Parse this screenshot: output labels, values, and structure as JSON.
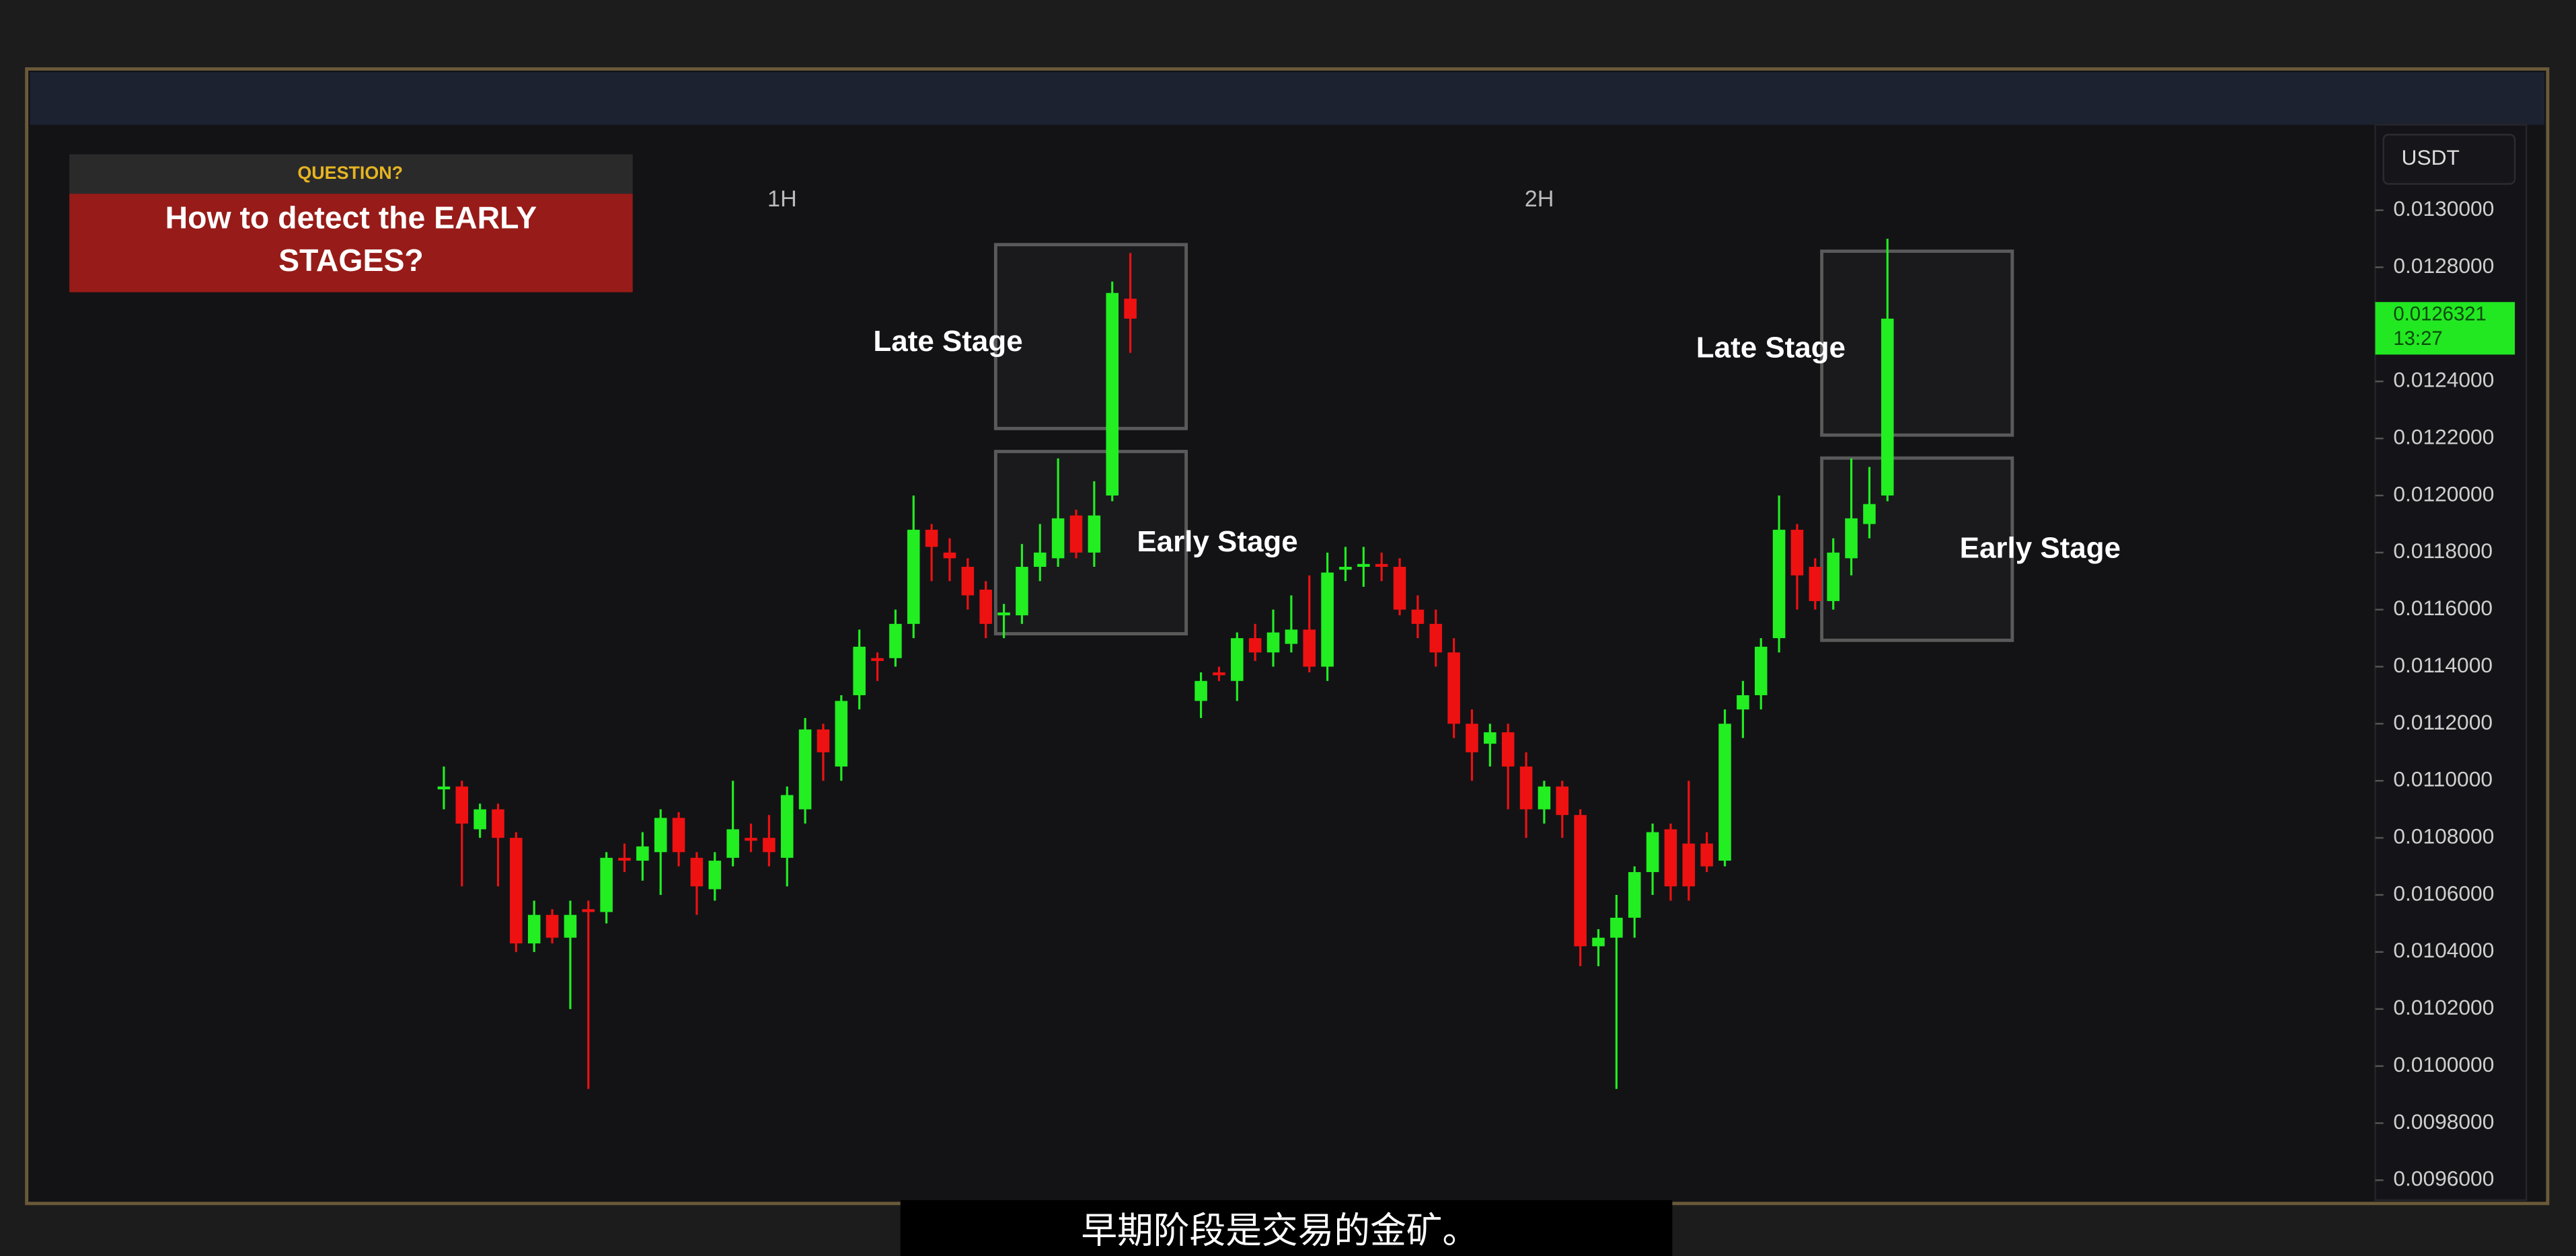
{
  "question": {
    "label": "QUESTION?",
    "text": "How to detect the EARLY STAGES?"
  },
  "subtitle": "早期阶段是交易的金矿。",
  "annotations": {
    "late_stage": "Late Stage",
    "early_stage": "Early Stage"
  },
  "price_axis": {
    "label": "USDT",
    "ylim": [
      0.009553,
      0.013288
    ],
    "yticks": [
      {
        "value": 0.013,
        "label": "0.0130000"
      },
      {
        "value": 0.0128,
        "label": "0.0128000"
      },
      {
        "value": 0.0124,
        "label": "0.0124000"
      },
      {
        "value": 0.0122,
        "label": "0.0122000"
      },
      {
        "value": 0.012,
        "label": "0.0120000"
      },
      {
        "value": 0.0118,
        "label": "0.0118000"
      },
      {
        "value": 0.0116,
        "label": "0.0116000"
      },
      {
        "value": 0.0114,
        "label": "0.0114000"
      },
      {
        "value": 0.0112,
        "label": "0.0112000"
      },
      {
        "value": 0.011,
        "label": "0.0110000"
      },
      {
        "value": 0.0108,
        "label": "0.0108000"
      },
      {
        "value": 0.0106,
        "label": "0.0106000"
      },
      {
        "value": 0.0104,
        "label": "0.0104000"
      },
      {
        "value": 0.0102,
        "label": "0.0102000"
      },
      {
        "value": 0.01,
        "label": "0.0100000"
      },
      {
        "value": 0.0098,
        "label": "0.0098000"
      },
      {
        "value": 0.0096,
        "label": "0.0096000"
      }
    ],
    "current_price": 0.0126321,
    "current_time": "13:27",
    "current_color": "#22e822"
  },
  "chart_data": [
    {
      "type": "candlestick",
      "title": "1H",
      "up_color": "#22ee22",
      "down_color": "#ee1111",
      "open": [
        0.01097,
        0.01098,
        0.01083,
        0.0109,
        0.0108,
        0.01043,
        0.01053,
        0.01045,
        0.01055,
        0.01054,
        0.01073,
        0.01072,
        0.01075,
        0.01087,
        0.01073,
        0.01062,
        0.01073,
        0.0108,
        0.0108,
        0.01073,
        0.0109,
        0.01118,
        0.01105,
        0.0113,
        0.01143,
        0.01143,
        0.01155,
        0.01188,
        0.0118,
        0.01175,
        0.01167,
        0.01158,
        0.01158,
        0.01175,
        0.01178,
        0.01193,
        0.0118,
        0.012,
        0.01269
      ],
      "high": [
        0.01105,
        0.011,
        0.01092,
        0.01092,
        0.01082,
        0.01058,
        0.01055,
        0.01058,
        0.01058,
        0.01075,
        0.01078,
        0.01082,
        0.0109,
        0.01089,
        0.01075,
        0.01075,
        0.011,
        0.01085,
        0.01088,
        0.01098,
        0.01122,
        0.0112,
        0.0113,
        0.01153,
        0.01145,
        0.0116,
        0.012,
        0.0119,
        0.01185,
        0.01178,
        0.0117,
        0.01162,
        0.01183,
        0.0119,
        0.01213,
        0.01195,
        0.01205,
        0.01275,
        0.01285
      ],
      "low": [
        0.0109,
        0.01063,
        0.0108,
        0.01063,
        0.0104,
        0.0104,
        0.01043,
        0.0102,
        0.00992,
        0.0105,
        0.01068,
        0.01065,
        0.0106,
        0.0107,
        0.01053,
        0.01058,
        0.0107,
        0.01075,
        0.0107,
        0.01063,
        0.01085,
        0.011,
        0.011,
        0.01125,
        0.01135,
        0.0114,
        0.0115,
        0.0117,
        0.0117,
        0.0116,
        0.0115,
        0.0115,
        0.01155,
        0.0117,
        0.01175,
        0.01178,
        0.01175,
        0.01198,
        0.0125
      ],
      "close": [
        0.01098,
        0.01085,
        0.0109,
        0.0108,
        0.01043,
        0.01053,
        0.01045,
        0.01053,
        0.01054,
        0.01073,
        0.01072,
        0.01077,
        0.01087,
        0.01075,
        0.01063,
        0.01072,
        0.01083,
        0.01079,
        0.01075,
        0.01095,
        0.01118,
        0.0111,
        0.01128,
        0.01147,
        0.01142,
        0.01155,
        0.01188,
        0.01182,
        0.01178,
        0.01165,
        0.01155,
        0.01159,
        0.01175,
        0.0118,
        0.01192,
        0.0118,
        0.01193,
        0.01271,
        0.01262
      ]
    },
    {
      "type": "candlestick",
      "title": "2H",
      "up_color": "#22ee22",
      "down_color": "#ee1111",
      "open": [
        0.01128,
        0.01138,
        0.01135,
        0.0115,
        0.01145,
        0.01148,
        0.01153,
        0.0114,
        0.01174,
        0.01175,
        0.01176,
        0.01175,
        0.0116,
        0.01155,
        0.01145,
        0.0112,
        0.01113,
        0.01117,
        0.01105,
        0.0109,
        0.01098,
        0.01088,
        0.01042,
        0.01045,
        0.01052,
        0.01068,
        0.01083,
        0.01078,
        0.01078,
        0.01072,
        0.01125,
        0.0113,
        0.0115,
        0.01188,
        0.01175,
        0.01163,
        0.01178,
        0.0119,
        0.012
      ],
      "high": [
        0.01138,
        0.0114,
        0.01152,
        0.01155,
        0.0116,
        0.01165,
        0.01172,
        0.0118,
        0.01182,
        0.01182,
        0.0118,
        0.01178,
        0.01165,
        0.0116,
        0.0115,
        0.01125,
        0.0112,
        0.0112,
        0.0111,
        0.011,
        0.011,
        0.0109,
        0.01048,
        0.0106,
        0.0107,
        0.01085,
        0.01085,
        0.011,
        0.01082,
        0.01125,
        0.01135,
        0.0115,
        0.012,
        0.0119,
        0.01178,
        0.01185,
        0.01213,
        0.0121,
        0.0129
      ],
      "low": [
        0.01122,
        0.01135,
        0.01128,
        0.01142,
        0.0114,
        0.01145,
        0.01138,
        0.01135,
        0.0117,
        0.01168,
        0.0117,
        0.01158,
        0.0115,
        0.0114,
        0.01115,
        0.011,
        0.01105,
        0.0109,
        0.0108,
        0.01085,
        0.0108,
        0.01035,
        0.01035,
        0.00992,
        0.01045,
        0.0106,
        0.01058,
        0.01058,
        0.01068,
        0.0107,
        0.01115,
        0.01125,
        0.01145,
        0.0116,
        0.0116,
        0.0116,
        0.01172,
        0.01185,
        0.01198
      ],
      "close": [
        0.01135,
        0.01137,
        0.0115,
        0.01145,
        0.01152,
        0.01153,
        0.0114,
        0.01173,
        0.01175,
        0.01176,
        0.01175,
        0.0116,
        0.01155,
        0.01145,
        0.0112,
        0.0111,
        0.01117,
        0.01105,
        0.0109,
        0.01098,
        0.01088,
        0.01042,
        0.01045,
        0.01052,
        0.01068,
        0.01082,
        0.01063,
        0.01063,
        0.0107,
        0.0112,
        0.0113,
        0.01147,
        0.01188,
        0.01172,
        0.01163,
        0.0118,
        0.01192,
        0.01197,
        0.01262
      ]
    }
  ]
}
